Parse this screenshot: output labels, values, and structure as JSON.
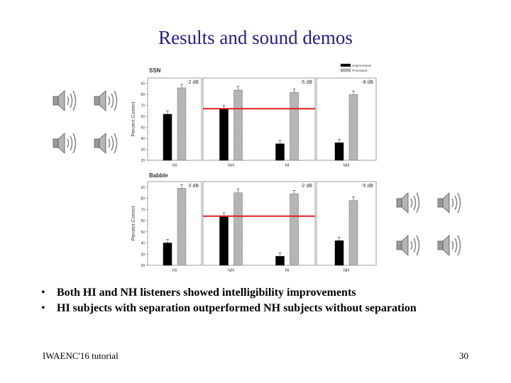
{
  "slide": {
    "title": "Results and sound demos",
    "bullets": [
      "Both HI and NH listeners showed intelligibility improvements",
      "HI subjects with separation outperformed NH subjects without separation"
    ],
    "footer_left": "IWAENC'16 tutorial",
    "page_number": "30",
    "bullet_glyph": "•"
  },
  "icons": [
    "speaker-icon",
    "speaker-icon",
    "speaker-icon",
    "speaker-icon",
    "speaker-icon",
    "speaker-icon",
    "speaker-icon",
    "speaker-icon"
  ],
  "chart_data": [
    {
      "type": "bar",
      "title": "SSN",
      "ylabel": "Percent Correct",
      "ylim": [
        20,
        95
      ],
      "yticks": [
        20,
        30,
        40,
        50,
        60,
        70,
        80,
        90
      ],
      "legend": {
        "entries": [
          "Unprocessed",
          "Processed"
        ],
        "placement": "top-right"
      },
      "panels": [
        {
          "snr": "-2 dB",
          "categories": [
            "HI"
          ],
          "unprocessed": [
            62
          ],
          "processed": [
            86
          ]
        },
        {
          "snr": "-5 dB",
          "categories": [
            "NH",
            "HI"
          ],
          "unprocessed": [
            67,
            35
          ],
          "processed": [
            84,
            82
          ]
        },
        {
          "snr": "-8 dB",
          "categories": [
            "NH"
          ],
          "unprocessed": [
            36
          ],
          "processed": [
            80
          ]
        }
      ],
      "reference_line": {
        "value": 67,
        "color": "#e02020"
      },
      "colors": {
        "unprocessed": "#000000",
        "processed": "#bdbdbd"
      }
    },
    {
      "type": "bar",
      "title": "Babble",
      "ylabel": "Percent Correct",
      "ylim": [
        20,
        95
      ],
      "yticks": [
        20,
        30,
        40,
        50,
        60,
        70,
        80,
        90
      ],
      "panels": [
        {
          "snr": "0 dB",
          "categories": [
            "HI"
          ],
          "unprocessed": [
            40
          ],
          "processed": [
            89
          ]
        },
        {
          "snr": "-2 dB",
          "categories": [
            "NH",
            "HI"
          ],
          "unprocessed": [
            64,
            28
          ],
          "processed": [
            85,
            84
          ]
        },
        {
          "snr": "-5 dB",
          "categories": [
            "NH"
          ],
          "unprocessed": [
            42
          ],
          "processed": [
            78
          ]
        }
      ],
      "reference_line": {
        "value": 64,
        "color": "#e02020"
      },
      "colors": {
        "unprocessed": "#000000",
        "processed": "#bdbdbd"
      }
    }
  ]
}
